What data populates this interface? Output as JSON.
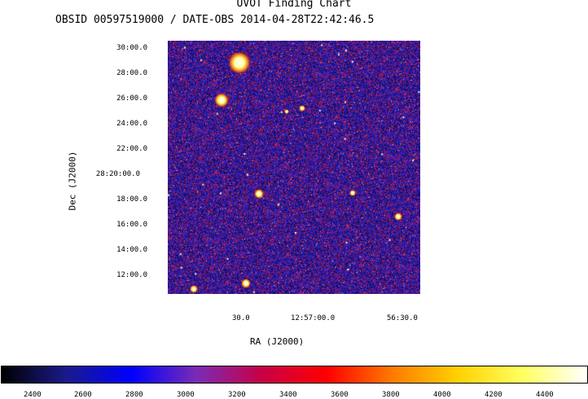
{
  "header": {
    "title": "UVOT Finding Chart",
    "subtitle": "OBSID 00597519000 / DATE-OBS 2014-04-28T22:42:46.5"
  },
  "axes": {
    "ylabel": "Dec (J2000)",
    "xlabel": "RA (J2000)",
    "dec_ticks": [
      "30:00.0",
      "28:00.0",
      "26:00.0",
      "24:00.0",
      "22:00.0",
      "28:20:00.0",
      "18:00.0",
      "16:00.0",
      "14:00.0",
      "12:00.0"
    ],
    "ra_ticks": [
      "30.0",
      "12:57:00.0",
      "56:30.0"
    ]
  },
  "colorbar": {
    "ticks": [
      "2400",
      "2600",
      "2800",
      "3000",
      "3200",
      "3400",
      "3600",
      "3800",
      "4000",
      "4200",
      "4400"
    ],
    "colors": [
      "#000000",
      "#1a1a8c",
      "#0000ff",
      "#7a2cb4",
      "#c80046",
      "#ff0000",
      "#ff7a00",
      "#ffd000",
      "#ffff60",
      "#ffffff"
    ]
  }
}
